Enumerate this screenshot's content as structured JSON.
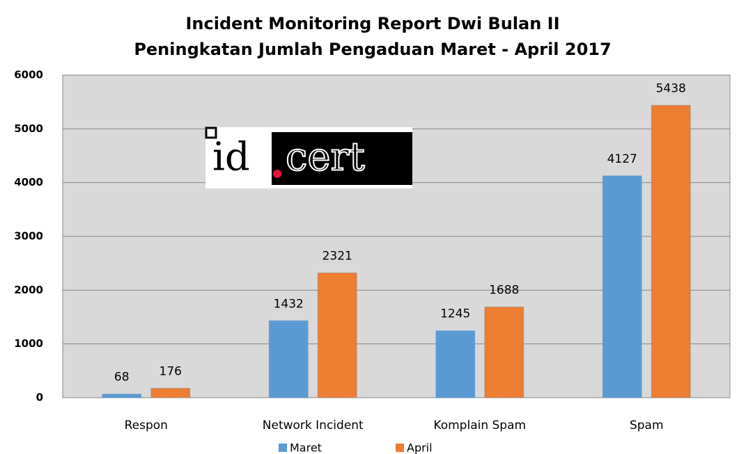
{
  "chart_data": {
    "type": "bar",
    "title": "Incident Monitoring Report Dwi Bulan II",
    "subtitle": "Peningkatan Jumlah Pengaduan Maret - April 2017",
    "logo": {
      "left": "id",
      "right": "cert"
    },
    "categories": [
      "Respon",
      "Network Incident",
      "Komplain Spam",
      "Spam"
    ],
    "series": [
      {
        "name": "Maret",
        "color": "#5b9bd5",
        "values": [
          68,
          1432,
          1245,
          4127
        ]
      },
      {
        "name": "April",
        "color": "#ed7d31",
        "values": [
          176,
          2321,
          1688,
          5438
        ]
      }
    ],
    "ylim": [
      0,
      6000
    ],
    "yticks": [
      0,
      1000,
      2000,
      3000,
      4000,
      5000,
      6000
    ],
    "grid": true,
    "legend": "bottom"
  }
}
